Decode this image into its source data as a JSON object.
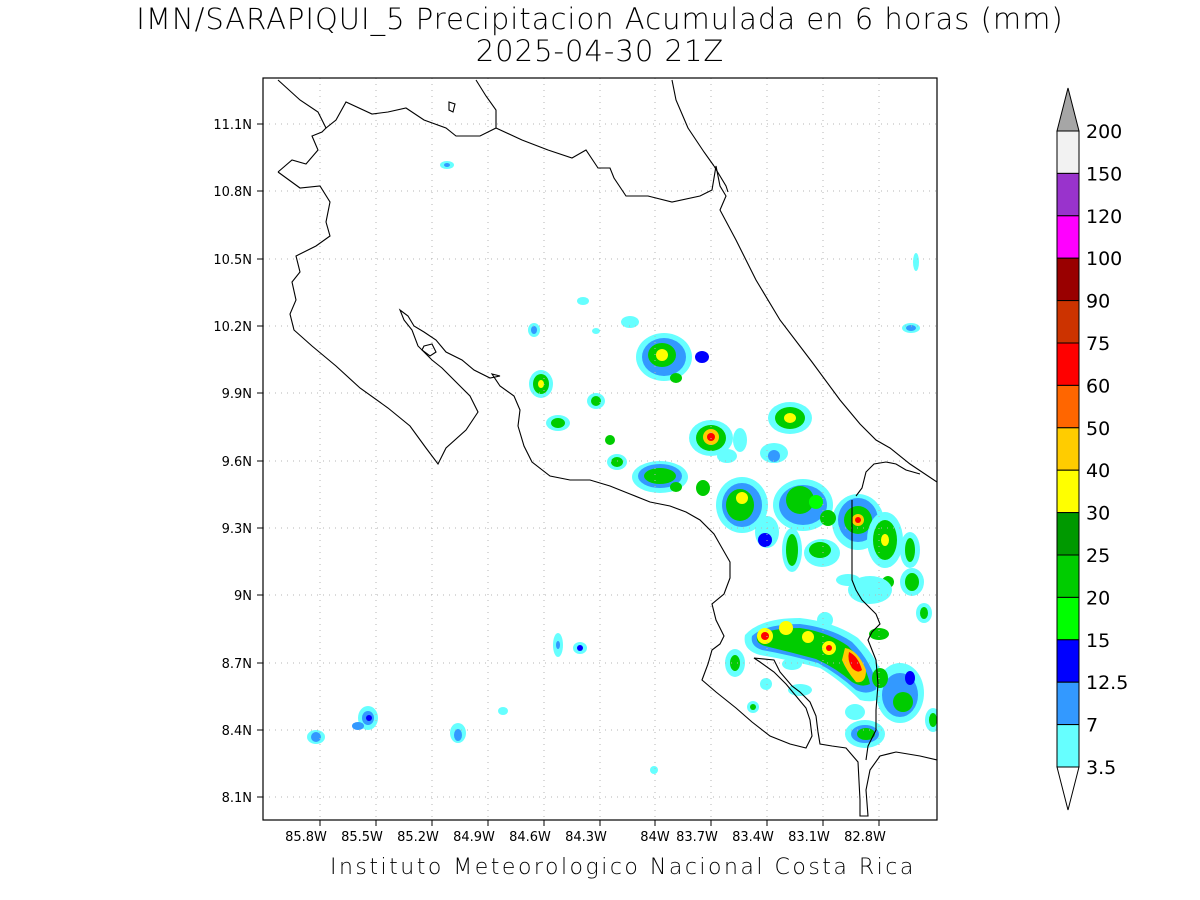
{
  "title": {
    "line1": "IMN/SARAPIQUI_5 Precipitacion Acumulada en 6 horas (mm)",
    "line2": "2025-04-30 21Z"
  },
  "footer": "Instituto Meteorologico Nacional Costa Rica",
  "map": {
    "lon_labels": [
      "85.8W",
      "85.5W",
      "85.2W",
      "84.9W",
      "84.6W",
      "84.3W",
      "84W",
      "83.7W",
      "83.4W",
      "83.1W",
      "82.8W"
    ],
    "lat_labels": [
      "11.1N",
      "10.8N",
      "10.5N",
      "10.2N",
      "9.9N",
      "9.6N",
      "9.3N",
      "9N",
      "8.7N",
      "8.4N",
      "8.1N"
    ],
    "gridlines": "dotted"
  },
  "colorbar": {
    "levels": [
      "200",
      "150",
      "120",
      "100",
      "90",
      "75",
      "60",
      "50",
      "40",
      "30",
      "25",
      "20",
      "15",
      "12.5",
      "7",
      "3.5"
    ],
    "colors": {
      "3.5": "#66ffff",
      "7": "#3399ff",
      "12.5": "#0000ff",
      "15": "#00ff00",
      "20": "#00cc00",
      "25": "#009900",
      "30": "#ffff00",
      "40": "#ffcc00",
      "50": "#ff6600",
      "60": "#ff0000",
      "75": "#cc3300",
      "90": "#990000",
      "100": "#ff00ff",
      "120": "#9933cc",
      "150": "#f2f2f2",
      "200": "#a6a6a6"
    }
  }
}
